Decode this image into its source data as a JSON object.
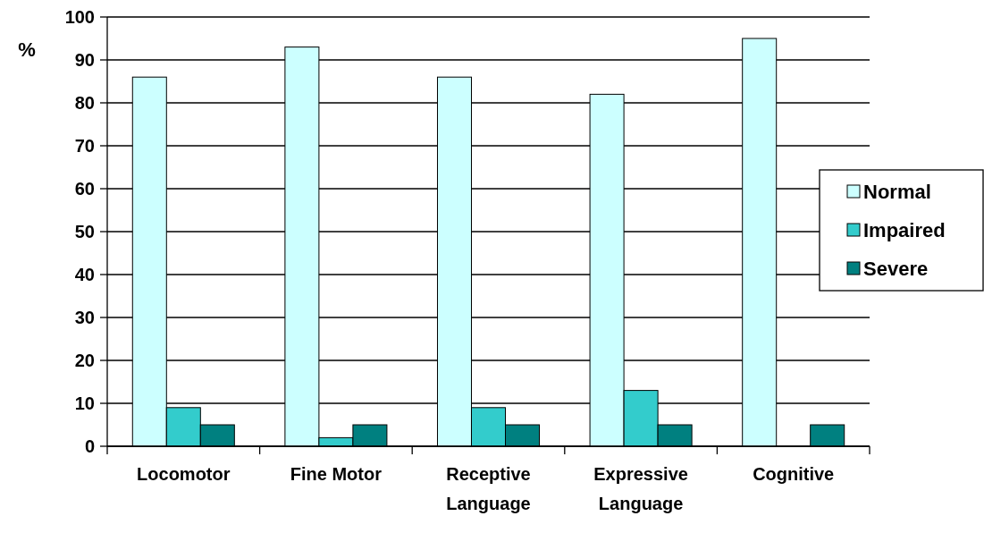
{
  "chart_data": {
    "type": "bar",
    "ylabel": "%",
    "categories": [
      "Locomotor",
      "Fine Motor",
      "Receptive Language",
      "Expressive Language",
      "Cognitive"
    ],
    "series": [
      {
        "name": "Normal",
        "color": "#ccffff",
        "values": [
          86,
          93,
          86,
          82,
          95
        ]
      },
      {
        "name": "Impaired",
        "color": "#33cccc",
        "values": [
          9,
          2,
          9,
          13,
          0
        ]
      },
      {
        "name": "Severe",
        "color": "#008080",
        "values": [
          5,
          5,
          5,
          5,
          5
        ]
      }
    ],
    "ylim": [
      0,
      100
    ],
    "yticks": [
      0,
      10,
      20,
      30,
      40,
      50,
      60,
      70,
      80,
      90,
      100
    ],
    "grid": "y",
    "legend": "right"
  }
}
